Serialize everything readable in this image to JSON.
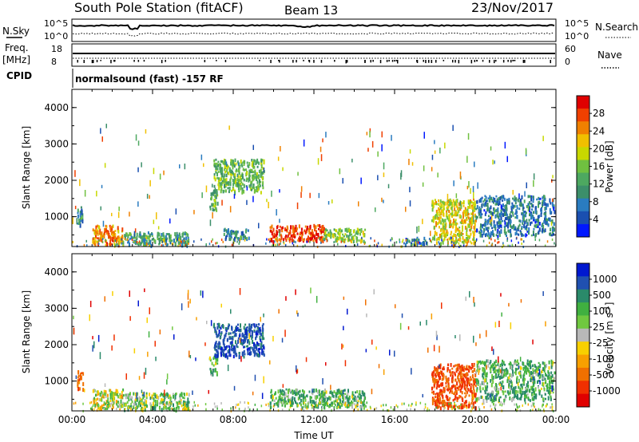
{
  "header": {
    "station": "South Pole Station (fitACF)",
    "beam": "Beam 13",
    "date": "23/Nov/2017"
  },
  "top_panels": {
    "nsky": {
      "label": "N.Sky",
      "tick_top": "10^5",
      "tick_bottom": "10^0"
    },
    "nsearch": {
      "label": "N.Search",
      "tick_top": "10^5",
      "tick_bottom": "10^0"
    },
    "freq": {
      "label_line1": "Freq.",
      "label_line2": "[MHz]",
      "tick_top": "18",
      "tick_bottom": "8"
    },
    "nave": {
      "label": "Nave",
      "tick_top": "60",
      "tick_bottom": "0"
    },
    "cpid": {
      "label": "CPID",
      "value": "normalsound (fast) -157 RF"
    }
  },
  "chart_data": [
    {
      "type": "heatmap",
      "name": "power",
      "xlabel": "",
      "ylabel": "Slant Range [km]",
      "x_ticks": [
        "00:00",
        "04:00",
        "08:00",
        "12:00",
        "16:00",
        "20:00",
        "00:00"
      ],
      "y_ticks": [
        "1000",
        "2000",
        "3000",
        "4000"
      ],
      "ylim": [
        180,
        4500
      ],
      "xlim_hours": [
        0,
        24
      ],
      "colorbar": {
        "label": "Power [dB]",
        "ticks": [
          "4",
          "8",
          "12",
          "16",
          "20",
          "24",
          "28"
        ],
        "colors": [
          "#0018ff",
          "#1a4fb0",
          "#2a7cc0",
          "#3c8f6a",
          "#4da860",
          "#70c040",
          "#c8d800",
          "#f0c000",
          "#f08000",
          "#f04000",
          "#e00000"
        ]
      },
      "regions": [
        {
          "t0": 0.25,
          "t1": 0.55,
          "r0": 800,
          "r1": 1300,
          "value": 10
        },
        {
          "t0": 1.0,
          "t1": 2.5,
          "r0": 250,
          "r1": 800,
          "value": 24
        },
        {
          "t0": 2.5,
          "t1": 5.8,
          "r0": 250,
          "r1": 600,
          "value": 12
        },
        {
          "t0": 6.8,
          "t1": 7.2,
          "r0": 1200,
          "r1": 1700,
          "value": 14
        },
        {
          "t0": 7.0,
          "t1": 9.5,
          "r0": 1700,
          "r1": 2600,
          "value": 14
        },
        {
          "t0": 7.5,
          "t1": 8.8,
          "r0": 400,
          "r1": 700,
          "value": 10
        },
        {
          "t0": 9.8,
          "t1": 12.5,
          "r0": 350,
          "r1": 800,
          "value": 28
        },
        {
          "t0": 12.5,
          "t1": 14.5,
          "r0": 350,
          "r1": 700,
          "value": 16
        },
        {
          "t0": 16.5,
          "t1": 17.8,
          "r0": 250,
          "r1": 450,
          "value": 8
        },
        {
          "t0": 17.8,
          "t1": 20.0,
          "r0": 300,
          "r1": 1500,
          "value": 20
        },
        {
          "t0": 20.0,
          "t1": 23.9,
          "r0": 500,
          "r1": 1600,
          "value": 8
        }
      ]
    },
    {
      "type": "heatmap",
      "name": "velocity",
      "xlabel": "Time UT",
      "ylabel": "Slant Range [km]",
      "x_ticks": [
        "00:00",
        "04:00",
        "08:00",
        "12:00",
        "16:00",
        "20:00",
        "00:00"
      ],
      "y_ticks": [
        "1000",
        "2000",
        "3000",
        "4000"
      ],
      "ylim": [
        180,
        4500
      ],
      "xlim_hours": [
        0,
        24
      ],
      "colorbar": {
        "label": "Velocity [m s^-1]",
        "ticks": [
          "1000",
          "500",
          "100",
          "25",
          "-25",
          "-100",
          "-500",
          "-1000"
        ],
        "colors": [
          "#0018d0",
          "#2050b0",
          "#2a8a6a",
          "#40b040",
          "#70c840",
          "#b8b8b8",
          "#f8d000",
          "#f8a000",
          "#f07000",
          "#f03000",
          "#e00000"
        ]
      },
      "regions": [
        {
          "t0": 0.25,
          "t1": 0.55,
          "r0": 800,
          "r1": 1300,
          "value": -400
        },
        {
          "t0": 1.0,
          "t1": 2.5,
          "r0": 250,
          "r1": 800,
          "value": 0
        },
        {
          "t0": 2.5,
          "t1": 5.8,
          "r0": 250,
          "r1": 700,
          "value": 150
        },
        {
          "t0": 6.8,
          "t1": 7.2,
          "r0": 1200,
          "r1": 1700,
          "value": 150
        },
        {
          "t0": 7.0,
          "t1": 9.5,
          "r0": 1700,
          "r1": 2600,
          "value": 700
        },
        {
          "t0": 9.8,
          "t1": 14.5,
          "r0": 300,
          "r1": 800,
          "value": 200
        },
        {
          "t0": 17.8,
          "t1": 20.0,
          "r0": 300,
          "r1": 1500,
          "value": -600
        },
        {
          "t0": 20.0,
          "t1": 23.9,
          "r0": 500,
          "r1": 1600,
          "value": 200
        }
      ]
    }
  ]
}
